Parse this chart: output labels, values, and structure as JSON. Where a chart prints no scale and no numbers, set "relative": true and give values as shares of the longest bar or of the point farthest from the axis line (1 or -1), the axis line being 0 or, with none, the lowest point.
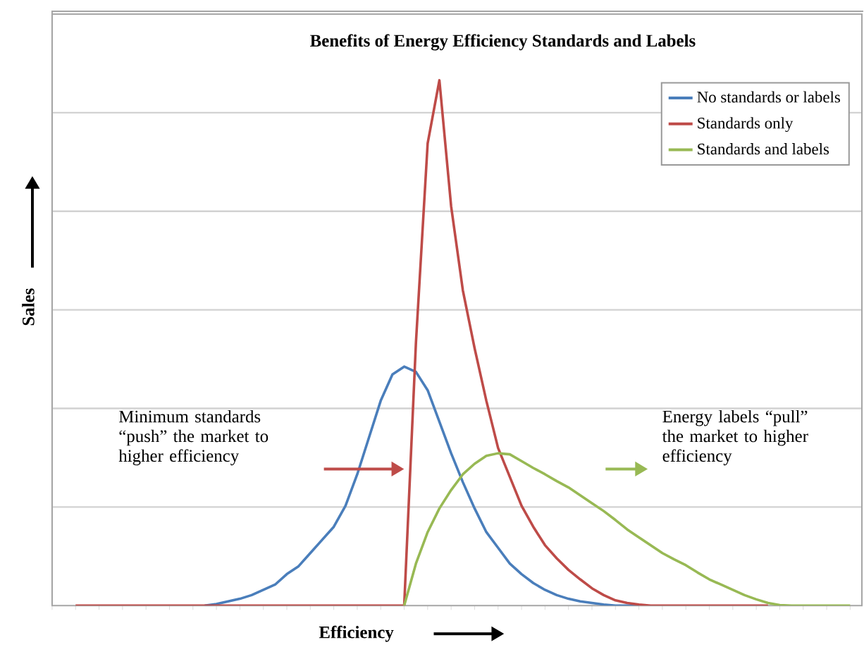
{
  "chart_data": {
    "type": "line",
    "title": "Benefits of Energy Efficiency Standards and Labels",
    "xlabel": "Efficiency",
    "ylabel": "Sales",
    "relative": true,
    "grid": "y",
    "legend": "top right",
    "tick_labels": false,
    "categories": [
      null,
      null,
      null,
      null,
      null,
      null,
      null,
      null,
      null,
      null,
      null,
      null,
      null,
      null,
      null,
      null,
      null,
      null,
      null,
      null,
      null,
      null,
      null,
      null,
      null,
      null,
      null,
      null,
      null,
      null,
      null,
      null,
      null,
      null,
      null,
      null,
      null,
      null,
      null,
      null,
      null,
      null,
      null,
      null,
      null,
      null,
      null,
      null,
      null,
      null,
      null,
      null,
      null,
      null,
      null,
      null,
      null,
      null,
      null,
      null,
      null,
      null,
      null,
      null,
      null,
      null,
      null,
      null,
      null
    ],
    "series": [
      {
        "name": "No standards or labels",
        "color": "#4a7ebb",
        "values": [
          null,
          null,
          null,
          null,
          null,
          null,
          null,
          null,
          null,
          null,
          null,
          null,
          null,
          0,
          0.003,
          0.008,
          0.013,
          0.02,
          0.03,
          0.04,
          0.06,
          0.075,
          0.1,
          0.125,
          0.15,
          0.19,
          0.25,
          0.32,
          0.39,
          0.44,
          0.455,
          0.445,
          0.41,
          0.35,
          0.29,
          0.235,
          0.185,
          0.14,
          0.11,
          0.08,
          0.06,
          0.043,
          0.03,
          0.02,
          0.013,
          0.008,
          0.005,
          0.002,
          0,
          0,
          0,
          null,
          null,
          null,
          null,
          null,
          null,
          null,
          null,
          null,
          null,
          null,
          null,
          null,
          null,
          null,
          null,
          null,
          null
        ]
      },
      {
        "name": "Standards only",
        "color": "#be4b48",
        "values": [
          null,
          null,
          0,
          0,
          0,
          0,
          0,
          0,
          0,
          0,
          0,
          0,
          0,
          0,
          0,
          0,
          0,
          0,
          0,
          0,
          0,
          0,
          0,
          0,
          0,
          0,
          0,
          0,
          0,
          0,
          0,
          0.5,
          0.88,
          1,
          0.76,
          0.6,
          0.49,
          0.39,
          0.3,
          0.245,
          0.19,
          0.15,
          0.115,
          0.09,
          0.068,
          0.05,
          0.033,
          0.02,
          0.01,
          0.005,
          0.002,
          0,
          0,
          0,
          0,
          0,
          0,
          0,
          0,
          0,
          0,
          0,
          null,
          null,
          null,
          null,
          null,
          null,
          null
        ]
      },
      {
        "name": "Standards and labels",
        "color": "#98b954",
        "values": [
          null,
          null,
          null,
          null,
          null,
          null,
          null,
          null,
          null,
          null,
          null,
          null,
          null,
          null,
          null,
          null,
          null,
          null,
          null,
          null,
          null,
          null,
          null,
          null,
          null,
          null,
          null,
          null,
          null,
          null,
          0,
          0.08,
          0.14,
          0.185,
          0.22,
          0.25,
          0.27,
          0.285,
          0.29,
          0.288,
          0.275,
          0.262,
          0.25,
          0.237,
          0.225,
          0.21,
          0.195,
          0.18,
          0.163,
          0.145,
          0.13,
          0.115,
          0.1,
          0.088,
          0.077,
          0.063,
          0.05,
          0.04,
          0.03,
          0.02,
          0.012,
          0.005,
          0.001,
          0,
          0,
          0,
          0,
          0,
          0
        ]
      }
    ],
    "annotations": [
      "Minimum standards “push” the market to higher efficiency",
      "Energy labels “pull” the market to higher efficiency"
    ]
  }
}
